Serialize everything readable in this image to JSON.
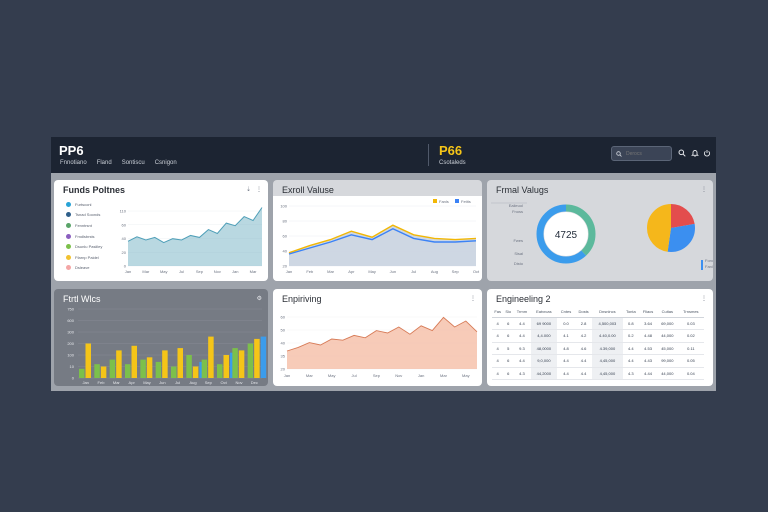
{
  "app": {
    "brand": "PP6",
    "nav": [
      "Fnnotiano",
      "Fland",
      "Sontiscu",
      "Csnigon"
    ],
    "brand2": "P66",
    "brand2_sub": "Csotaleds",
    "search_placeholder": "Derocs",
    "accent": "#f5c518",
    "topbar_color": "#1c2432"
  },
  "panels": {
    "p1": {
      "title": "Funds Poltnes",
      "legend": [
        {
          "label": "Furtsconl",
          "color": "#29a3d6"
        },
        {
          "label": "Tsnad Soonds",
          "color": "#2f5f8a"
        },
        {
          "label": "Fenntrsnt",
          "color": "#5aa469"
        },
        {
          "label": "Fmdlsbrsts",
          "color": "#8b5fbf"
        },
        {
          "label": "Dsunlu Pasiiley",
          "color": "#7cc04b"
        },
        {
          "label": "Ffarnp Paidel",
          "color": "#f2c230"
        },
        {
          "label": "Dsleave",
          "color": "#f4a6a6"
        }
      ],
      "chart_data": {
        "type": "area",
        "x": [
          "Jan",
          "Feb",
          "Mar",
          "Apr",
          "May",
          "Jun",
          "Jul",
          "Aug",
          "Sep",
          "Oct",
          "Nov",
          "Dec",
          "Jan",
          "Feb",
          "Mar",
          "Apr"
        ],
        "series": [
          {
            "values": [
              38,
              45,
              40,
              44,
              36,
              42,
              40,
              47,
              44,
              56,
              50,
              66,
              62,
              76,
              70,
              90
            ]
          }
        ],
        "ylim": [
          0,
          100
        ],
        "yticks": [
          "110",
          "60",
          "40",
          "20",
          "0"
        ],
        "color": "#7fb8c9"
      }
    },
    "p2": {
      "title": "Exroll Valuse",
      "legend": [
        "Fanls",
        "Fetits"
      ],
      "chart_data": {
        "type": "line",
        "x": [
          "Jan",
          "Feb",
          "Mar",
          "Apr",
          "May",
          "Jun",
          "Jul",
          "Aug",
          "Sep",
          "Oct"
        ],
        "series": [
          {
            "values": [
              22,
              34,
              44,
              58,
              48,
              68,
              52,
              46,
              44,
              46
            ],
            "color": "#f2b705"
          },
          {
            "values": [
              20,
              30,
              40,
              52,
              44,
              62,
              46,
              40,
              40,
              42
            ],
            "color": "#3b82f6"
          }
        ],
        "ylim": [
          0,
          100
        ],
        "yticks": [
          "100",
          "80",
          "60",
          "40",
          "20"
        ]
      }
    },
    "p3": {
      "title": "Frmal Valugs",
      "donut_center": "4725",
      "legend": [
        "Fonvaenl",
        "Funsnoll",
        "Fanl",
        "Falnlks"
      ],
      "chart_data": [
        {
          "type": "pie",
          "labels": [
            "Teal",
            "Blue"
          ],
          "values": [
            38,
            62
          ],
          "colors": [
            "#5cb99c",
            "#3b9cec"
          ]
        },
        {
          "type": "pie",
          "labels": [
            "Red",
            "Blue",
            "Yellow"
          ],
          "values": [
            22,
            30,
            48
          ],
          "colors": [
            "#e34d4d",
            "#3b8ff0",
            "#f5b71b"
          ]
        }
      ]
    },
    "p4": {
      "title": "Ftrtl Wlcs",
      "chart_data": {
        "type": "bar",
        "categories": [
          "Jan",
          "Feb",
          "Mar",
          "Apr",
          "May",
          "Jun",
          "Jul",
          "Aug",
          "Sep",
          "Oct",
          "Nov",
          "Dec"
        ],
        "series": [
          {
            "values": [
              8,
              12,
              16,
              12,
              16,
              14,
              10,
              20,
              16,
              12,
              26,
              30
            ],
            "color": "#7cc04b"
          },
          {
            "values": [
              30,
              10,
              24,
              28,
              18,
              24,
              26,
              10,
              36,
              20,
              24,
              34
            ],
            "color": "#f5c518"
          },
          {
            "values": [
              0,
              0,
              0,
              0,
              0,
              0,
              0,
              14,
              0,
              22,
              0,
              36
            ],
            "color": "#3b9cec"
          }
        ],
        "ylim": [
          0,
          60
        ],
        "yticks": [
          "750",
          "600",
          "300",
          "200",
          "100",
          "10",
          "0"
        ]
      }
    },
    "p5": {
      "title": "Enpiriving",
      "chart_data": {
        "type": "area",
        "x": [
          "Jan",
          "Feb",
          "Mar",
          "Apr",
          "May",
          "Jun",
          "Jul",
          "Aug",
          "Sep",
          "Oct",
          "Nov",
          "Dec",
          "Jan",
          "Feb",
          "Mar",
          "Apr",
          "May",
          "Jun"
        ],
        "series": [
          {
            "values": [
              30,
              36,
              44,
              40,
              50,
              48,
              56,
              52,
              64,
              60,
              70,
              58,
              72,
              64,
              86,
              70,
              80,
              62
            ],
            "color": "#f4b9a0"
          }
        ],
        "ylim": [
          0,
          100
        ],
        "yticks": [
          "60",
          "50",
          "40",
          "35",
          "20"
        ]
      }
    },
    "p6": {
      "title": "Engineeling 2",
      "columns": [
        "Fas",
        "Sio",
        "Trmm",
        "Eatvrcas",
        "Cntes",
        "Dosts",
        "Dnsnlncs",
        "Tonta",
        "Fliacs",
        "Cuitas",
        "Trnsmes"
      ],
      "rows": [
        [
          "4",
          "6",
          "4.4",
          "69 9000",
          "0.0",
          "2.8",
          "4,500,003",
          "0.8",
          "3.64",
          "69,000",
          "0.03"
        ],
        [
          "4",
          "6",
          "4.4",
          "4,4.000",
          "4.1",
          "4.2",
          "4.40,0.00",
          "0.2",
          "4.48",
          "44,000",
          "0.02"
        ],
        [
          "4",
          "5",
          "9.3",
          "48,0000",
          "4.8",
          "4.6",
          "4.39,000",
          "4.4",
          "4.53",
          "45,000",
          "0.11"
        ],
        [
          "4",
          "6",
          "4.4",
          "9,0,000",
          "4.4",
          "4.4",
          "4,45,000",
          "4.4",
          "4.43",
          "99,000",
          "0.05"
        ],
        [
          "4",
          "6",
          "4.3",
          "44,2000",
          "4.4",
          "4.4",
          "4,45,000",
          "4.3",
          "4.44",
          "44,000",
          "0.04"
        ]
      ]
    }
  }
}
